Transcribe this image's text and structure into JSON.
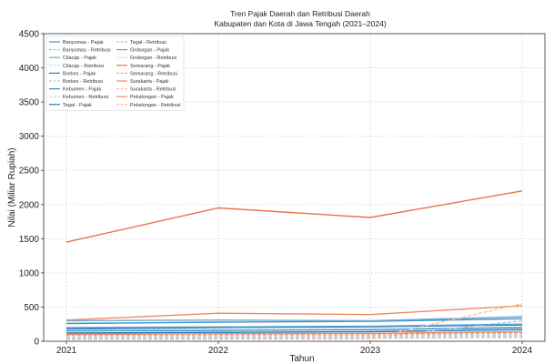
{
  "chart_data": {
    "type": "line",
    "title": "Tren Pajak Daerah dan Retribusi Daerah",
    "subtitle": "Kabupaten dan Kota di Jawa Tengah (2021–2024)",
    "xlabel": "Tahun",
    "ylabel": "Nilai (Miliar Rupiah)",
    "x": [
      2021,
      2022,
      2023,
      2024
    ],
    "xticks": [
      "2021",
      "2022",
      "2023",
      "2024"
    ],
    "ylim": [
      0,
      4500
    ],
    "yticks": [
      "0",
      "500",
      "1000",
      "1500",
      "2000",
      "2500",
      "3000",
      "3500",
      "4000",
      "4500"
    ],
    "grid": true,
    "legend_position": "top-left",
    "series": [
      {
        "name": "Banyumas - Pajak",
        "color": "#4a90c2",
        "dashed": false,
        "values": [
          260,
          280,
          290,
          330
        ]
      },
      {
        "name": "Banyumas - Retribusi",
        "color": "#9ecae1",
        "dashed": true,
        "values": [
          80,
          85,
          90,
          120
        ]
      },
      {
        "name": "Cilacap - Pajak",
        "color": "#6baed6",
        "dashed": false,
        "values": [
          300,
          310,
          300,
          360
        ]
      },
      {
        "name": "Cilacap - Retribusi",
        "color": "#c6dbef",
        "dashed": true,
        "values": [
          70,
          75,
          80,
          100
        ]
      },
      {
        "name": "Brebes - Pajak",
        "color": "#2b7bba",
        "dashed": false,
        "values": [
          180,
          200,
          210,
          240
        ]
      },
      {
        "name": "Brebes - Retribusi",
        "color": "#a6cee3",
        "dashed": true,
        "values": [
          60,
          65,
          70,
          85
        ]
      },
      {
        "name": "Kebumen - Pajak",
        "color": "#3d8ec9",
        "dashed": false,
        "values": [
          150,
          160,
          170,
          200
        ]
      },
      {
        "name": "Kebumen - Retribusi",
        "color": "#b9d8ef",
        "dashed": true,
        "values": [
          50,
          55,
          60,
          75
        ]
      },
      {
        "name": "Tegal - Pajak",
        "color": "#1f78b4",
        "dashed": false,
        "values": [
          120,
          130,
          140,
          170
        ]
      },
      {
        "name": "Tegal - Retribusi",
        "color": "#9ecae1",
        "dashed": true,
        "values": [
          40,
          45,
          50,
          300
        ]
      },
      {
        "name": "Grobogan - Pajak",
        "color": "#5ba3cf",
        "dashed": false,
        "values": [
          200,
          210,
          220,
          250
        ]
      },
      {
        "name": "Grobogan - Retribusi",
        "color": "#c6dbef",
        "dashed": true,
        "values": [
          55,
          60,
          65,
          80
        ]
      },
      {
        "name": "Semarang - Pajak",
        "color": "#e8734a",
        "dashed": false,
        "values": [
          1450,
          1950,
          1810,
          2200
        ]
      },
      {
        "name": "Semarang - Retribusi",
        "color": "#f4a582",
        "dashed": true,
        "values": [
          90,
          100,
          95,
          130
        ]
      },
      {
        "name": "Surakarta - Pajak",
        "color": "#ef8a62",
        "dashed": false,
        "values": [
          310,
          410,
          390,
          520
        ]
      },
      {
        "name": "Surakarta - Retribusi",
        "color": "#fdbf9f",
        "dashed": true,
        "values": [
          30,
          35,
          40,
          550
        ]
      },
      {
        "name": "Pekalongan - Pajak",
        "color": "#f08c64",
        "dashed": false,
        "values": [
          100,
          110,
          115,
          140
        ]
      },
      {
        "name": "Pekalongan - Retribusi",
        "color": "#f6b394",
        "dashed": true,
        "values": [
          35,
          40,
          45,
          60
        ]
      }
    ]
  }
}
